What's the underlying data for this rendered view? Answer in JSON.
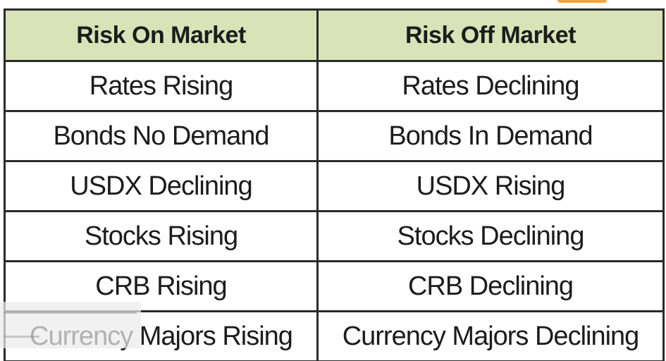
{
  "table": {
    "headers": [
      "Risk On Market",
      "Risk Off Market"
    ],
    "rows": [
      [
        "Rates Rising",
        "Rates Declining"
      ],
      [
        "Bonds No Demand",
        "Bonds In Demand"
      ],
      [
        "USDX Declining",
        "USDX Rising"
      ],
      [
        "Stocks Rising",
        "Stocks Declining"
      ],
      [
        "CRB Rising",
        "CRB Declining"
      ],
      [
        "Currency Majors Rising",
        "Currency Majors Declining"
      ]
    ]
  },
  "colors": {
    "header_background": "#d9e3b7",
    "border": "#2b2b2b",
    "accent": "#f4a43a"
  }
}
